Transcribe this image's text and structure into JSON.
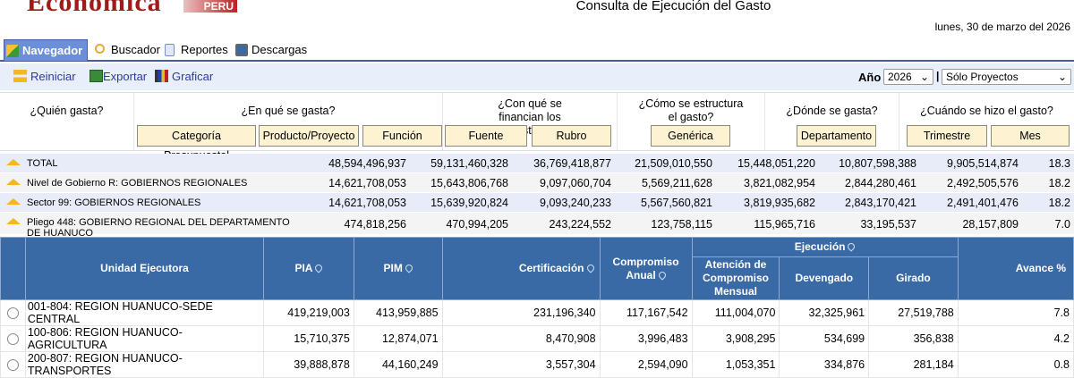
{
  "header": {
    "logo": "Economica",
    "logo_badge": "PERU",
    "title": "Consulta de Ejecución del Gasto",
    "date": "lunes, 30 de marzo del 2026"
  },
  "tabs": [
    {
      "label": "Navegador",
      "icon": "cube-icon"
    },
    {
      "label": "Buscador",
      "icon": "magnifier-icon"
    },
    {
      "label": "Reportes",
      "icon": "document-icon"
    },
    {
      "label": "Descargas",
      "icon": "download-icon"
    }
  ],
  "toolbar": {
    "reiniciar": "Reiniciar",
    "exportar": "Exportar",
    "graficar": "Graficar",
    "ano_label": "Año",
    "ano_value": "2026",
    "filter_value": "Sólo Proyectos",
    "separator": "|"
  },
  "dimensions": {
    "quien": "¿Quién gasta?",
    "en_que": "¿En qué se gasta?",
    "categoria": "Categoría Presupuestal",
    "producto": "Producto/Proyecto",
    "funcion": "Función",
    "con_que": "¿Con qué se financian los gastos?",
    "fuente": "Fuente",
    "rubro": "Rubro",
    "como": "¿Cómo se estructura el gasto?",
    "generica": "Genérica",
    "donde": "¿Dónde se gasta?",
    "departamento": "Departamento",
    "cuando": "¿Cuándo se hizo el gasto?",
    "trimestre": "Trimestre",
    "mes": "Mes"
  },
  "summary": [
    {
      "label": "TOTAL",
      "values": [
        "48,594,496,937",
        "59,131,460,328",
        "36,769,418,877",
        "21,509,010,550",
        "15,448,051,220",
        "10,807,598,388",
        "9,905,514,874",
        "18.3"
      ]
    },
    {
      "label": "Nivel de Gobierno R: GOBIERNOS REGIONALES",
      "values": [
        "14,621,708,053",
        "15,643,806,768",
        "9,097,060,704",
        "5,569,211,628",
        "3,821,082,954",
        "2,844,280,461",
        "2,492,505,576",
        "18.2"
      ]
    },
    {
      "label": "Sector 99: GOBIERNOS REGIONALES",
      "values": [
        "14,621,708,053",
        "15,639,920,824",
        "9,093,240,233",
        "5,567,560,821",
        "3,819,935,682",
        "2,843,170,421",
        "2,491,401,476",
        "18.2"
      ]
    },
    {
      "label": "Pliego 448: GOBIERNO REGIONAL DEL DEPARTAMENTO DE HUANUCO",
      "values": [
        "474,818,256",
        "470,994,205",
        "243,224,552",
        "123,758,115",
        "115,965,716",
        "33,195,537",
        "28,157,809",
        "7.0"
      ]
    }
  ],
  "table": {
    "headers": {
      "unidad": "Unidad Ejecutora",
      "pia": "PIA",
      "pim": "PIM",
      "cert": "Certificación",
      "comp": "Compromiso Anual",
      "ejec": "Ejecución",
      "aten": "Atención de Compromiso Mensual",
      "dev": "Devengado",
      "gir": "Girado",
      "avance": "Avance %"
    },
    "rows": [
      {
        "name": "001-804: REGION HUANUCO-SEDE CENTRAL",
        "values": [
          "419,219,003",
          "413,959,885",
          "231,196,340",
          "117,167,542",
          "111,004,070",
          "32,325,961",
          "27,519,788",
          "7.8"
        ]
      },
      {
        "name": "100-806: REGION HUANUCO-AGRICULTURA",
        "values": [
          "15,710,375",
          "12,874,071",
          "8,470,908",
          "3,996,483",
          "3,908,295",
          "534,699",
          "356,838",
          "4.2"
        ]
      },
      {
        "name": "200-807: REGION HUANUCO-TRANSPORTES",
        "values": [
          "39,888,878",
          "44,160,249",
          "3,557,304",
          "2,594,090",
          "1,053,351",
          "334,876",
          "281,184",
          "0.8"
        ]
      }
    ]
  },
  "colors": {
    "header_blue": "#3a6aa5",
    "button_cream": "#fdf3d3",
    "tab_active": "#6b8fd9",
    "link": "#2b3aa0"
  }
}
